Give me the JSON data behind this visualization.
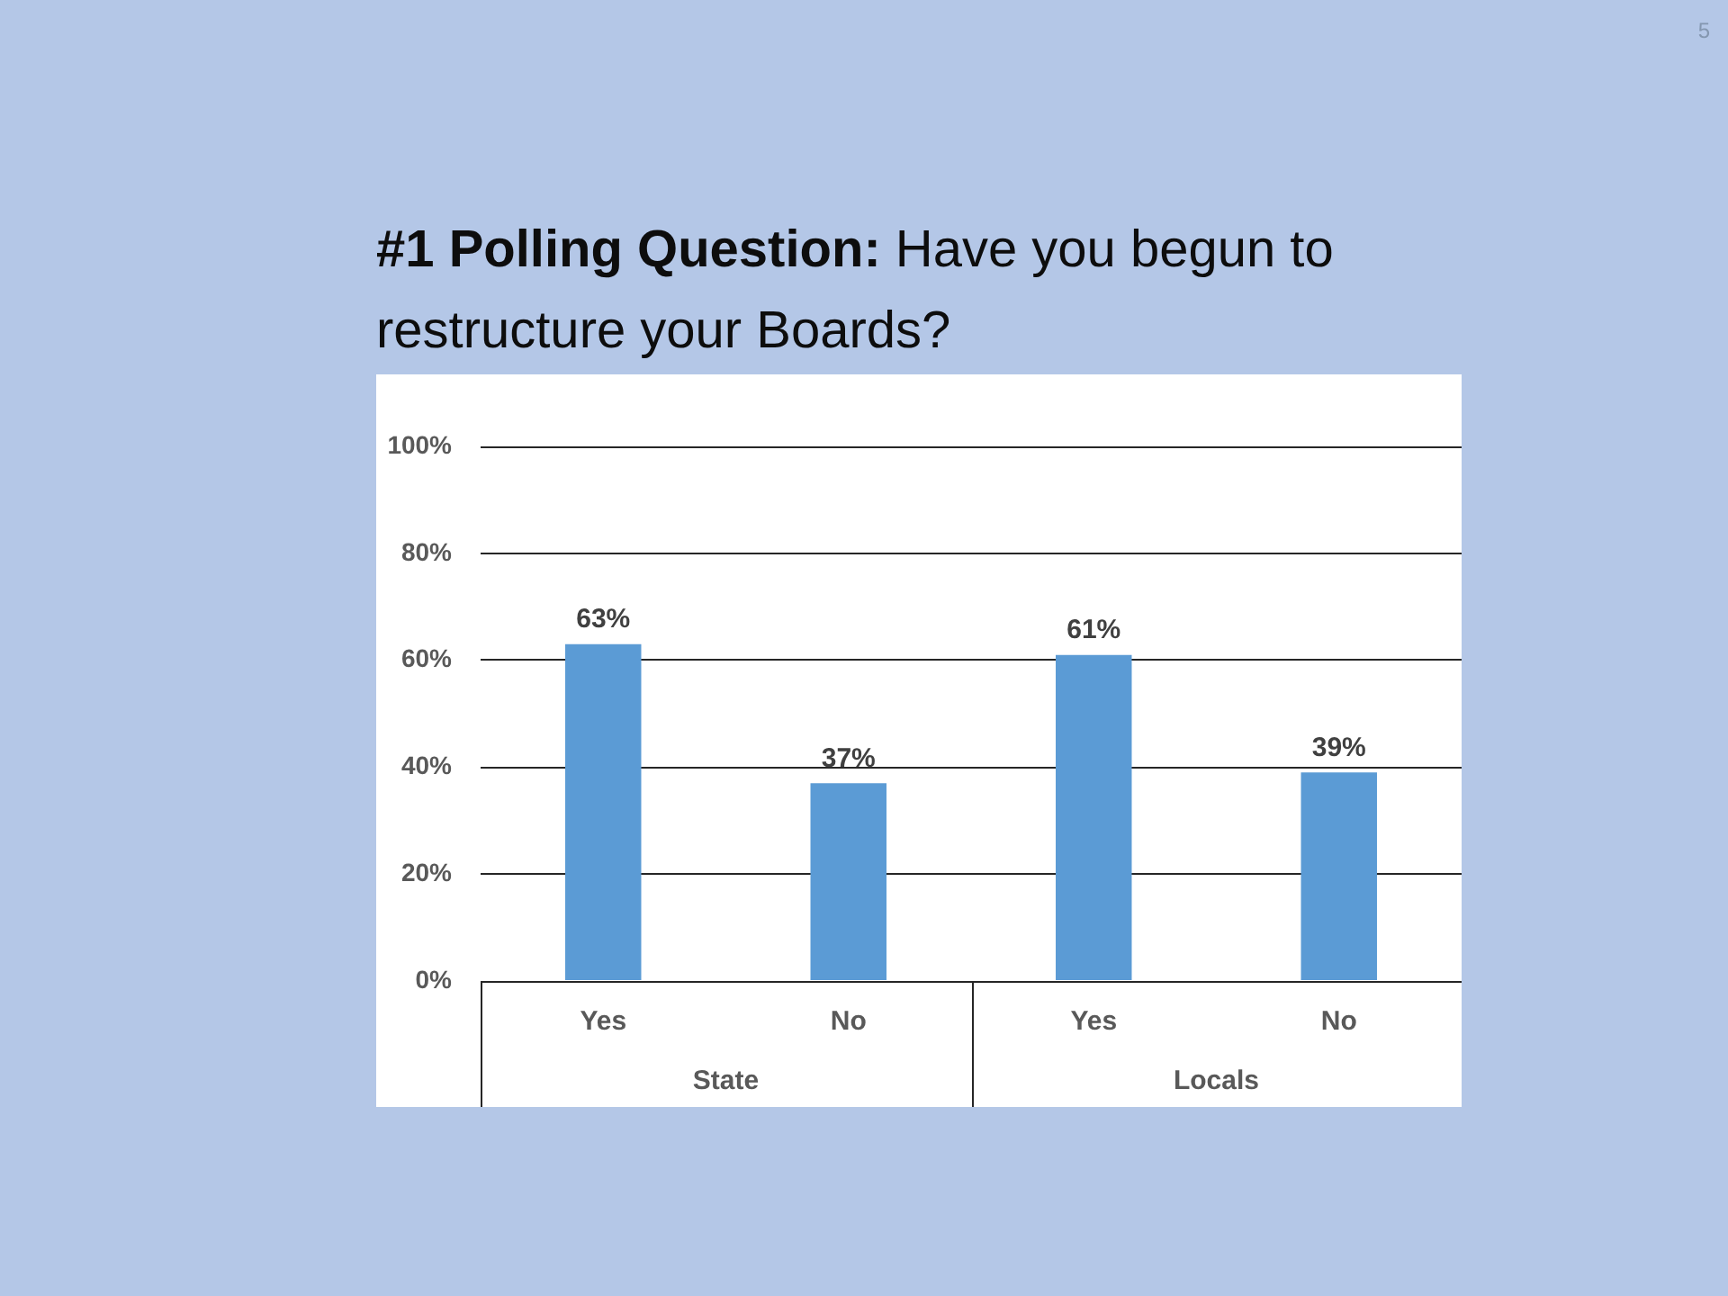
{
  "chart_data": {
    "type": "bar",
    "title": "#1 Polling Question: Have you begun to restructure your Boards?",
    "categories": [
      "Yes",
      "No",
      "Yes",
      "No"
    ],
    "values": [
      63,
      37,
      61,
      39
    ],
    "color": "#5b9bd5",
    "value_labels": [
      "63%",
      "37%",
      "61%",
      "39%"
    ],
    "ylim": [
      0,
      100
    ],
    "yticks": [
      {
        "value": 0,
        "label": "0%"
      },
      {
        "value": 20,
        "label": "20%"
      },
      {
        "value": 40,
        "label": "40%"
      },
      {
        "value": 60,
        "label": "60%"
      },
      {
        "value": 80,
        "label": "80%"
      },
      {
        "value": 100,
        "label": "100%"
      }
    ],
    "grid": "y",
    "annotations": [
      "5",
      "State",
      "Locals"
    ]
  }
}
